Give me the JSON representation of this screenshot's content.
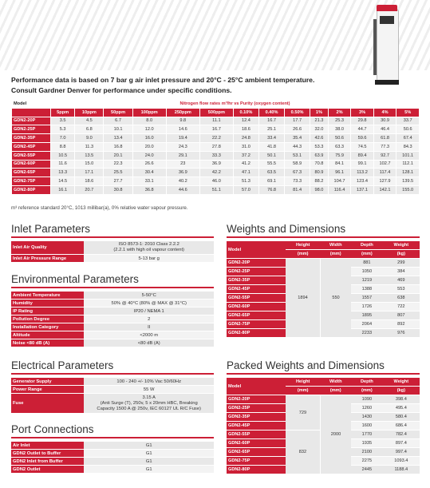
{
  "intro": {
    "line1": "Performance data is based on 7 bar g air inlet pressure and 20°C - 25°C ambient temperature.",
    "line2": "Consult Gardner Denver for performance under specific conditions."
  },
  "performance": {
    "model_label": "Model",
    "group_header": "Nitrogen flow rates m³/hr vs Purity (oxygen content)",
    "columns": [
      "5ppm",
      "10ppm",
      "50ppm",
      "100ppm",
      "250ppm",
      "500ppm",
      "0.10%",
      "0.40%",
      "0.50%",
      "1%",
      "2%",
      "3%",
      "4%",
      "5%"
    ],
    "rows": [
      {
        "model": "GDN2-20P",
        "values": [
          "3.5",
          "4.5",
          "6.7",
          "8.0",
          "9.8",
          "11.1",
          "12.4",
          "16.7",
          "17.7",
          "21.3",
          "25.3",
          "29.8",
          "30.9",
          "33.7"
        ]
      },
      {
        "model": "GDN2-25P",
        "values": [
          "5.3",
          "6.8",
          "10.1",
          "12.0",
          "14.6",
          "16.7",
          "18.6",
          "25.1",
          "26.6",
          "32.0",
          "38.0",
          "44.7",
          "46.4",
          "50.6"
        ]
      },
      {
        "model": "GDN2-35P",
        "values": [
          "7.0",
          "9.0",
          "13.4",
          "16.0",
          "19.4",
          "22.2",
          "24.8",
          "33.4",
          "35.4",
          "42.6",
          "50.6",
          "59.6",
          "61.8",
          "67.4"
        ]
      },
      {
        "model": "GDN2-45P",
        "values": [
          "8.8",
          "11.3",
          "16.8",
          "20.0",
          "24.3",
          "27.8",
          "31.0",
          "41.8",
          "44.3",
          "53.3",
          "63.3",
          "74.5",
          "77.3",
          "84.3"
        ]
      },
      {
        "model": "GDN2-55P",
        "values": [
          "10.5",
          "13.5",
          "20.1",
          "24.0",
          "29.1",
          "33.3",
          "37.2",
          "50.1",
          "53.1",
          "63.9",
          "75.9",
          "89.4",
          "92.7",
          "101.1"
        ]
      },
      {
        "model": "GDN2-60P",
        "values": [
          "11.6",
          "15.0",
          "22.3",
          "26.6",
          "23",
          "36.9",
          "41.2",
          "55.5",
          "58.9",
          "70.8",
          "84.1",
          "99.1",
          "102.7",
          "112.1"
        ]
      },
      {
        "model": "GDN2-65P",
        "values": [
          "13.3",
          "17.1",
          "25.5",
          "30.4",
          "36.9",
          "42.2",
          "47.1",
          "63.5",
          "67.3",
          "80.9",
          "96.1",
          "113.2",
          "117.4",
          "128.1"
        ]
      },
      {
        "model": "GDN2-75P",
        "values": [
          "14.5",
          "18.6",
          "27.7",
          "33.1",
          "40.2",
          "46.0",
          "51.3",
          "69.1",
          "73.3",
          "88.2",
          "104.7",
          "123.4",
          "127.9",
          "139.5"
        ]
      },
      {
        "model": "GDN2-80P",
        "values": [
          "16.1",
          "20.7",
          "30.8",
          "36.8",
          "44.6",
          "51.1",
          "57.0",
          "76.8",
          "81.4",
          "98.0",
          "116.4",
          "137.1",
          "142.1",
          "155.0"
        ]
      }
    ]
  },
  "footnote": "m³ reference standard 20°C, 1013 millibar(a), 0% relative water vapour pressure.",
  "inlet": {
    "title": "Inlet Parameters",
    "rows": [
      {
        "k": "Inlet Air Quality",
        "v": "ISO 8573-1: 2010 Class 2.2.2",
        "v2": "(2.2.1 with high oil vapour content)"
      },
      {
        "k": "Inlet Air Pressure Range",
        "v": "5-13 bar g",
        "v2": ""
      }
    ]
  },
  "env": {
    "title": "Environmental Parameters",
    "rows": [
      {
        "k": "Ambient Temperature",
        "v": "5-50°C"
      },
      {
        "k": "Humidity",
        "v": "50% @ 40°C (80% @ MAX @ 31°C)"
      },
      {
        "k": "IP Rating",
        "v": "IP20 / NEMA 1"
      },
      {
        "k": "Pollution Degree",
        "v": "2"
      },
      {
        "k": "Installation Category",
        "v": "II"
      },
      {
        "k": "Altitude",
        "v": "<2000 m"
      },
      {
        "k": "Noise <80 dB (A)",
        "v": "<80 dB (A)"
      }
    ]
  },
  "electrical": {
    "title": "Electrical Parameters",
    "rows": [
      {
        "k": "Generator Supply",
        "v": "100 - 240 +/- 10% Vac 50/60Hz",
        "v2": "",
        "v3": ""
      },
      {
        "k": "Power Range",
        "v": "55 W",
        "v2": "",
        "v3": ""
      },
      {
        "k": "Fuse",
        "v": "3.15 A",
        "v2": "(Anti Surge (T), 250v, 5 x 20mm HBC, Breaking",
        "v3": "Capacity 1500 A @ 250v, IEC 60127 UL R/C Fuse)"
      }
    ]
  },
  "ports": {
    "title": "Port Connections",
    "rows": [
      {
        "k": "Air Inlet",
        "v": "G1"
      },
      {
        "k": "GDN2 Outlet to Buffer",
        "v": "G1"
      },
      {
        "k": "GDN2 Inlet from Buffer",
        "v": "G1"
      },
      {
        "k": "GDN2 Outlet",
        "v": "G1"
      }
    ]
  },
  "weights": {
    "title": "Weights and Dimensions",
    "headers": {
      "model": "Model",
      "height": "Height",
      "width": "Width",
      "depth": "Depth",
      "weight": "Weight",
      "unit_mm": "(mm)",
      "unit_kg": "(kg)"
    },
    "height_merged": "1894",
    "width_merged": "550",
    "rows": [
      {
        "model": "GDN2-20P",
        "depth": "881",
        "weight": "299"
      },
      {
        "model": "GDN2-25P",
        "depth": "1050",
        "weight": "384"
      },
      {
        "model": "GDN2-35P",
        "depth": "1219",
        "weight": "469"
      },
      {
        "model": "GDN2-45P",
        "depth": "1388",
        "weight": "553"
      },
      {
        "model": "GDN2-55P",
        "depth": "1557",
        "weight": "638"
      },
      {
        "model": "GDN2-60P",
        "depth": "1726",
        "weight": "722"
      },
      {
        "model": "GDN2-65P",
        "depth": "1895",
        "weight": "807"
      },
      {
        "model": "GDN2-75P",
        "depth": "2064",
        "weight": "892"
      },
      {
        "model": "GDN2-80P",
        "depth": "2233",
        "weight": "976"
      }
    ]
  },
  "packed": {
    "title": "Packed Weights and Dimensions",
    "headers": {
      "model": "Model",
      "height": "Height",
      "width": "Width",
      "depth": "Depth",
      "weight": "Weight",
      "unit_mm": "(mm)",
      "unit_kg": "(kg)"
    },
    "height_a": "729",
    "height_b": "832",
    "width_merged": "2000",
    "rows": [
      {
        "model": "GDN2-20P",
        "depth": "1090",
        "weight": "398.4"
      },
      {
        "model": "GDN2-25P",
        "depth": "1260",
        "weight": "495.4"
      },
      {
        "model": "GDN2-35P",
        "depth": "1430",
        "weight": "580.4"
      },
      {
        "model": "GDN2-45P",
        "depth": "1600",
        "weight": "686.4"
      },
      {
        "model": "GDN2-55P",
        "depth": "1770",
        "weight": "782.4"
      },
      {
        "model": "GDN2-60P",
        "depth": "1935",
        "weight": "897.4"
      },
      {
        "model": "GDN2-65P",
        "depth": "2100",
        "weight": "997.4"
      },
      {
        "model": "GDN2-75P",
        "depth": "2275",
        "weight": "1093.4"
      },
      {
        "model": "GDN2-80P",
        "depth": "2445",
        "weight": "1188.4"
      }
    ]
  }
}
